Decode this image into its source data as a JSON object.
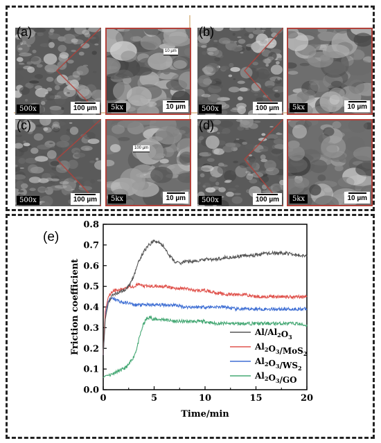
{
  "sem_panels": [
    {
      "id": "a",
      "label": "(a)",
      "main_mag": "500x",
      "main_scale": "100 µm",
      "zoom_mag": "5kx",
      "zoom_scale": "10 µm",
      "inner_scale": "10 µm"
    },
    {
      "id": "b",
      "label": "(b)",
      "main_mag": "500x",
      "main_scale": "100 µm",
      "zoom_mag": "5kx",
      "zoom_scale": "10 µm"
    },
    {
      "id": "c",
      "label": "(c)",
      "main_mag": "500x",
      "main_scale": "100 µm",
      "zoom_mag": "5kx",
      "zoom_scale": "10 µm",
      "inner_scale": "100 µm"
    },
    {
      "id": "d",
      "label": "(d)",
      "main_mag": "500x",
      "main_scale": "100 µm",
      "zoom_mag": "5kx",
      "zoom_scale": "10 µm"
    }
  ],
  "colors": {
    "zoom_border": "#b2413a",
    "Al/Al2O3": "#555555",
    "Al2O3/MoS2": "#e0544e",
    "Al2O3/WS2": "#3f6fd4",
    "Al2O3/GO": "#45a874"
  },
  "chart_data": {
    "type": "line",
    "panel_label": "(e)",
    "xlabel": "Time/min",
    "ylabel": "Friction coefficient",
    "xlim": [
      0,
      20
    ],
    "ylim": [
      0.0,
      0.8
    ],
    "xticks": [
      "0",
      "5",
      "10",
      "15",
      "20"
    ],
    "yticks": [
      "0.0",
      "0.1",
      "0.2",
      "0.3",
      "0.4",
      "0.5",
      "0.6",
      "0.7",
      "0.8"
    ],
    "legend_position": "bottom-right",
    "series": [
      {
        "name": "Al/Al2O3",
        "legend": [
          "Al/Al",
          "2",
          "O",
          "3",
          ""
        ],
        "x": [
          0,
          0.2,
          0.5,
          0.8,
          1,
          1.5,
          2,
          2.5,
          3,
          3.5,
          4,
          4.5,
          5,
          5.5,
          6,
          6.5,
          7,
          7.5,
          8,
          9,
          10,
          11,
          12,
          13,
          14,
          15,
          16,
          17,
          18,
          19,
          20
        ],
        "y": [
          0.17,
          0.34,
          0.42,
          0.45,
          0.46,
          0.47,
          0.48,
          0.5,
          0.55,
          0.62,
          0.67,
          0.7,
          0.72,
          0.71,
          0.69,
          0.65,
          0.62,
          0.61,
          0.62,
          0.62,
          0.63,
          0.63,
          0.64,
          0.64,
          0.65,
          0.65,
          0.66,
          0.66,
          0.66,
          0.65,
          0.65
        ]
      },
      {
        "name": "Al2O3/MoS2",
        "legend": [
          "Al",
          "2",
          "O",
          "3",
          "/MoS",
          "2"
        ],
        "x": [
          0,
          0.2,
          0.5,
          0.8,
          1,
          1.5,
          2,
          2.5,
          3,
          3.5,
          4,
          4.5,
          5,
          6,
          7,
          8,
          9,
          10,
          11,
          12,
          13,
          14,
          15,
          16,
          17,
          18,
          19,
          20
        ],
        "y": [
          0.17,
          0.38,
          0.45,
          0.47,
          0.48,
          0.48,
          0.49,
          0.5,
          0.5,
          0.51,
          0.5,
          0.5,
          0.5,
          0.5,
          0.49,
          0.49,
          0.48,
          0.48,
          0.47,
          0.46,
          0.46,
          0.46,
          0.45,
          0.45,
          0.45,
          0.45,
          0.45,
          0.45
        ]
      },
      {
        "name": "Al2O3/WS2",
        "legend": [
          "Al",
          "2",
          "O",
          "3",
          "/WS",
          "2"
        ],
        "x": [
          0,
          0.2,
          0.5,
          0.8,
          1,
          1.5,
          2,
          2.5,
          3,
          4,
          5,
          6,
          7,
          8,
          9,
          10,
          11,
          12,
          13,
          14,
          15,
          16,
          17,
          18,
          19,
          20
        ],
        "y": [
          0.17,
          0.36,
          0.43,
          0.44,
          0.44,
          0.43,
          0.42,
          0.42,
          0.41,
          0.41,
          0.41,
          0.41,
          0.41,
          0.4,
          0.4,
          0.4,
          0.4,
          0.4,
          0.39,
          0.39,
          0.39,
          0.39,
          0.39,
          0.39,
          0.39,
          0.39
        ]
      },
      {
        "name": "Al2O3/GO",
        "legend": [
          "Al",
          "2",
          "O",
          "3",
          "/GO",
          ""
        ],
        "x": [
          0,
          0.3,
          0.6,
          1,
          1.5,
          2,
          2.5,
          3,
          3.3,
          3.6,
          3.9,
          4.2,
          4.6,
          5,
          6,
          7,
          8,
          9,
          10,
          11,
          12,
          13,
          14,
          15,
          16,
          17,
          18,
          19,
          20
        ],
        "y": [
          0.06,
          0.07,
          0.07,
          0.08,
          0.09,
          0.1,
          0.12,
          0.16,
          0.2,
          0.26,
          0.31,
          0.34,
          0.35,
          0.34,
          0.34,
          0.33,
          0.33,
          0.33,
          0.33,
          0.32,
          0.32,
          0.32,
          0.32,
          0.32,
          0.32,
          0.32,
          0.32,
          0.32,
          0.31
        ]
      }
    ]
  }
}
